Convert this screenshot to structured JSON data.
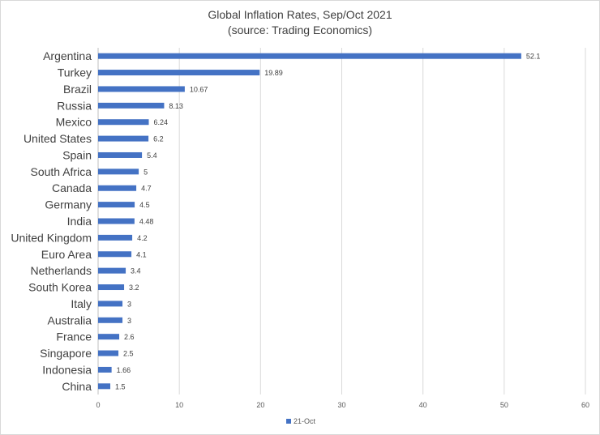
{
  "chart_data": {
    "type": "bar",
    "orientation": "horizontal",
    "title": "Global Inflation Rates, Sep/Oct 2021",
    "subtitle": "(source: Trading Economics)",
    "categories": [
      "Argentina",
      "Turkey",
      "Brazil",
      "Russia",
      "Mexico",
      "United States",
      "Spain",
      "South Africa",
      "Canada",
      "Germany",
      "India",
      "United Kingdom",
      "Euro Area",
      "Netherlands",
      "South Korea",
      "Italy",
      "Australia",
      "France",
      "Singapore",
      "Indonesia",
      "China"
    ],
    "series": [
      {
        "name": "21-Oct",
        "color": "#4472C4",
        "values": [
          52.1,
          19.89,
          10.67,
          8.13,
          6.24,
          6.2,
          5.4,
          5,
          4.7,
          4.5,
          4.48,
          4.2,
          4.1,
          3.4,
          3.2,
          3,
          3,
          2.6,
          2.5,
          1.66,
          1.5
        ]
      }
    ],
    "data_labels": [
      "52.1",
      "19.89",
      "10.67",
      "8.13",
      "6.24",
      "6.2",
      "5.4",
      "5",
      "4.7",
      "4.5",
      "4.48",
      "4.2",
      "4.1",
      "3.4",
      "3.2",
      "3",
      "3",
      "2.6",
      "2.5",
      "1.66",
      "1.5"
    ],
    "xlim": [
      0,
      60
    ],
    "xticks": [
      "0",
      "10",
      "20",
      "30",
      "40",
      "50",
      "60"
    ],
    "xlabel": "",
    "ylabel": "",
    "grid": true,
    "legend": "bottom"
  }
}
